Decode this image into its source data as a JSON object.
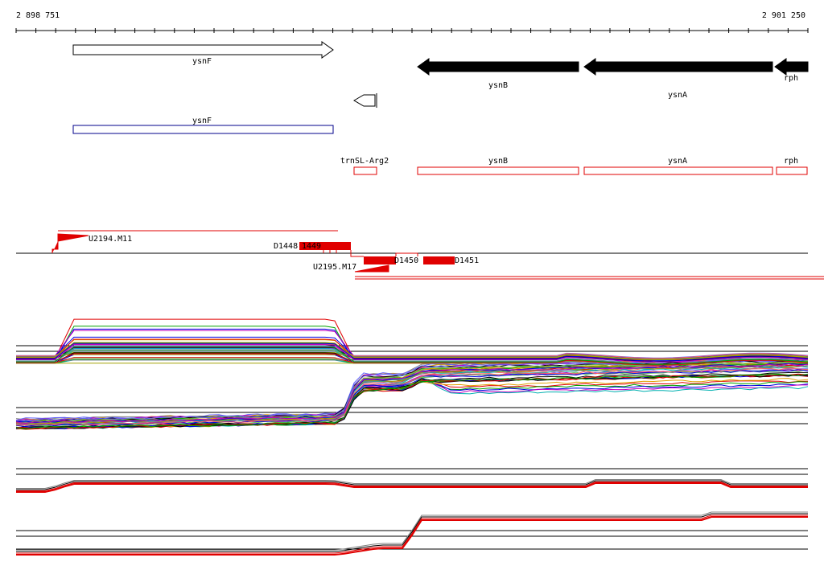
{
  "ruler": {
    "start": "2 898 751",
    "end": "2 901 250"
  },
  "genes": [
    {
      "label": "ysnF"
    },
    {
      "label": "ysnB"
    },
    {
      "label": "ysnA"
    },
    {
      "label": "rph"
    }
  ],
  "cds": [
    {
      "label": "ysnF"
    }
  ],
  "annotations": [
    {
      "label": "trnSL-Arg2"
    },
    {
      "label": "ysnB"
    },
    {
      "label": "ysnA"
    },
    {
      "label": "rph"
    }
  ],
  "segments": [
    {
      "label": "U2194.M11"
    },
    {
      "label": "D1448"
    },
    {
      "label": "1449"
    },
    {
      "label": "D1450"
    },
    {
      "label": "D1451"
    },
    {
      "label": "U2195.M17"
    }
  ]
}
